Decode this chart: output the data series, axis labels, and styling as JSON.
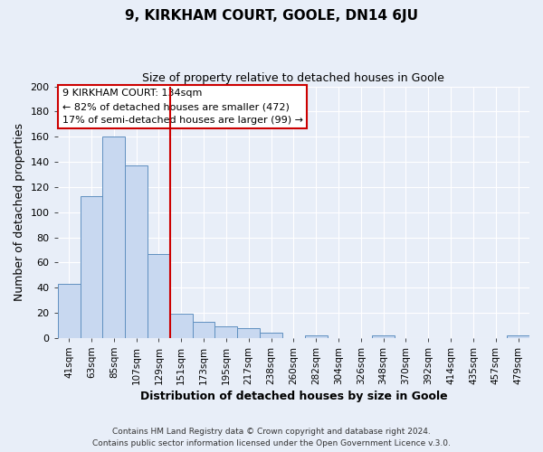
{
  "title": "9, KIRKHAM COURT, GOOLE, DN14 6JU",
  "subtitle": "Size of property relative to detached houses in Goole",
  "xlabel": "Distribution of detached houses by size in Goole",
  "ylabel": "Number of detached properties",
  "bin_labels": [
    "41sqm",
    "63sqm",
    "85sqm",
    "107sqm",
    "129sqm",
    "151sqm",
    "173sqm",
    "195sqm",
    "217sqm",
    "238sqm",
    "260sqm",
    "282sqm",
    "304sqm",
    "326sqm",
    "348sqm",
    "370sqm",
    "392sqm",
    "414sqm",
    "435sqm",
    "457sqm",
    "479sqm"
  ],
  "bar_heights": [
    43,
    113,
    160,
    137,
    67,
    19,
    13,
    9,
    8,
    4,
    0,
    2,
    0,
    0,
    2,
    0,
    0,
    0,
    0,
    0,
    2
  ],
  "bar_color": "#c8d8f0",
  "bar_edge_color": "#6090c0",
  "vline_x": 4.5,
  "vline_color": "#cc0000",
  "ylim": [
    0,
    200
  ],
  "yticks": [
    0,
    20,
    40,
    60,
    80,
    100,
    120,
    140,
    160,
    180,
    200
  ],
  "annotation_text": "9 KIRKHAM COURT: 134sqm\n← 82% of detached houses are smaller (472)\n17% of semi-detached houses are larger (99) →",
  "annotation_box_color": "#ffffff",
  "annotation_box_edge_color": "#cc0000",
  "footer_line1": "Contains HM Land Registry data © Crown copyright and database right 2024.",
  "footer_line2": "Contains public sector information licensed under the Open Government Licence v.3.0.",
  "background_color": "#e8eef8",
  "grid_color": "#ffffff",
  "plot_bg_color": "#e8eef8"
}
